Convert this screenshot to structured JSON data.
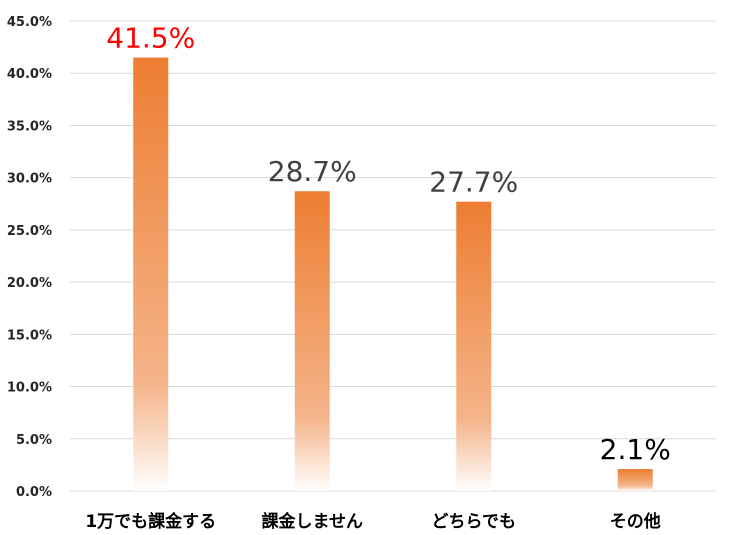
{
  "chart_data": {
    "type": "bar",
    "categories": [
      "1万でも課金する",
      "課金しません",
      "どちらでも",
      "その他"
    ],
    "values": [
      41.5,
      28.7,
      27.7,
      2.1
    ],
    "data_labels": [
      "41.5%",
      "28.7%",
      "27.7%",
      "2.1%"
    ],
    "data_label_colors": [
      "#ff0000",
      "#404040",
      "#404040",
      "#000000"
    ],
    "y_ticks": [
      0,
      5,
      10,
      15,
      20,
      25,
      30,
      35,
      40,
      45
    ],
    "y_tick_labels": [
      "0.0%",
      "5.0%",
      "10.0%",
      "15.0%",
      "20.0%",
      "25.0%",
      "30.0%",
      "35.0%",
      "40.0%",
      "45.0%"
    ],
    "ylim": [
      0,
      45
    ],
    "grid": true,
    "legend": "none",
    "bar_color_top": "#ed7d31",
    "bar_color_bottom": "#ffffff",
    "grid_color": "#d9d9d9"
  }
}
